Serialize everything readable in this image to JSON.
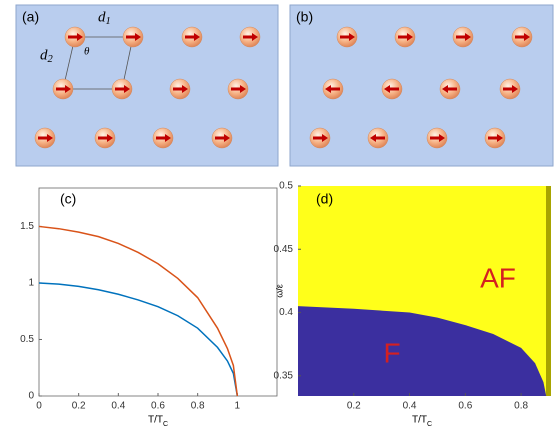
{
  "diagrams": [
    {
      "label": "(a)",
      "symbols": [
        {
          "text": "d",
          "sub": "1"
        },
        {
          "text": "d",
          "sub": "2"
        },
        {
          "text": "θ"
        }
      ]
    },
    {
      "label": "(b)"
    }
  ],
  "chart_data": [
    {
      "type": "line",
      "label": "(c)",
      "xlabel": "T/T",
      "xlabel_sub": "C",
      "x": [
        0,
        0.1,
        0.2,
        0.3,
        0.4,
        0.5,
        0.6,
        0.7,
        0.8,
        0.9,
        0.95,
        0.98,
        1
      ],
      "series": [
        {
          "color": "#0072bd",
          "values": [
            1,
            0.99,
            0.97,
            0.94,
            0.9,
            0.85,
            0.79,
            0.71,
            0.6,
            0.43,
            0.31,
            0.2,
            0
          ]
        },
        {
          "color": "#d95319",
          "values": [
            1.5,
            1.48,
            1.45,
            1.41,
            1.35,
            1.27,
            1.17,
            1.04,
            0.87,
            0.6,
            0.42,
            0.27,
            0
          ]
        }
      ],
      "xlim": [
        0,
        1.2
      ],
      "ylim": [
        0,
        1.84
      ],
      "xticks": [
        0,
        0.2,
        0.4,
        0.6,
        0.8,
        1
      ],
      "yticks": [
        0,
        0.5,
        1,
        1.5
      ]
    },
    {
      "type": "phase",
      "label": "(d)",
      "xlabel": "T/T",
      "xlabel_sub": "C",
      "ylabel": "ω/ε",
      "x": [
        0,
        0.2,
        0.4,
        0.5,
        0.6,
        0.7,
        0.8,
        0.85,
        0.88,
        0.89
      ],
      "values": [
        0.405,
        0.403,
        0.4,
        0.396,
        0.39,
        0.383,
        0.372,
        0.36,
        0.345,
        0.334
      ],
      "regions": [
        "AF",
        "F"
      ],
      "upper_color": "#ffff1a",
      "lower_color": "#3b2f9f",
      "edge_color": "#a8a400",
      "xlim": [
        0,
        0.9
      ],
      "ylim": [
        0.334,
        0.5
      ],
      "xticks": [
        0.2,
        0.4,
        0.6,
        0.8
      ],
      "yticks": [
        0.35,
        0.4,
        0.45,
        0.5
      ]
    }
  ]
}
